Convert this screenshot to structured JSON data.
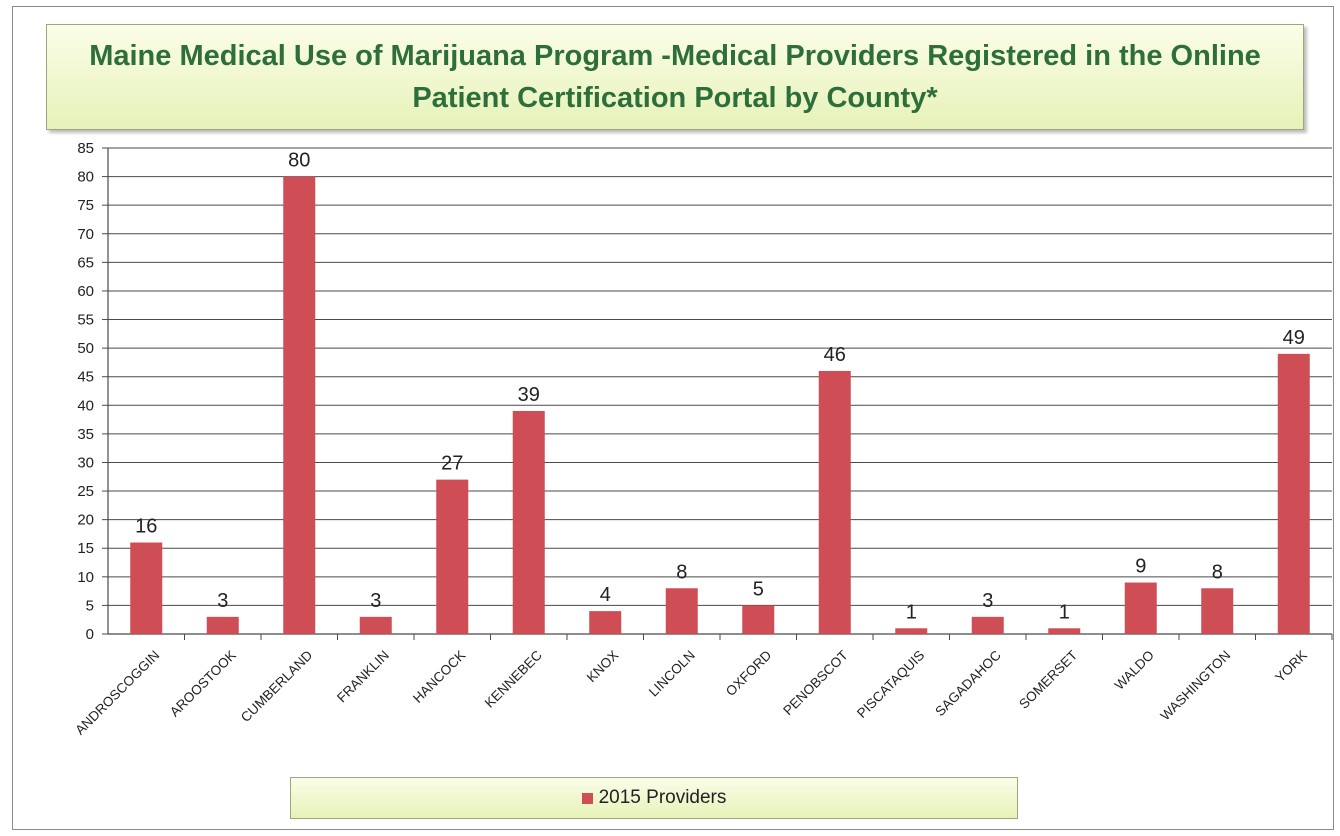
{
  "chart_data": {
    "type": "bar",
    "title": "Maine Medical Use of Marijuana Program -Medical  Providers Registered in the Online Patient Certification Portal  by County*",
    "categories": [
      "ANDROSCOGGIN",
      "AROOSTOOK",
      "CUMBERLAND",
      "FRANKLIN",
      "HANCOCK",
      "KENNEBEC",
      "KNOX",
      "LINCOLN",
      "OXFORD",
      "PENOBSCOT",
      "PISCATAQUIS",
      "SAGADAHOC",
      "SOMERSET",
      "WALDO",
      "WASHINGTON",
      "YORK"
    ],
    "series": [
      {
        "name": "2015 Providers",
        "values": [
          16,
          3,
          80,
          3,
          27,
          39,
          4,
          8,
          5,
          46,
          1,
          3,
          1,
          9,
          8,
          49
        ]
      }
    ],
    "ylim": [
      0,
      85
    ],
    "yticks": [
      0,
      5,
      10,
      15,
      20,
      25,
      30,
      35,
      40,
      45,
      50,
      55,
      60,
      65,
      70,
      75,
      80,
      85
    ],
    "grid": true,
    "data_labels": true,
    "legend_position": "bottom",
    "bar_color": "#cf4d55"
  }
}
